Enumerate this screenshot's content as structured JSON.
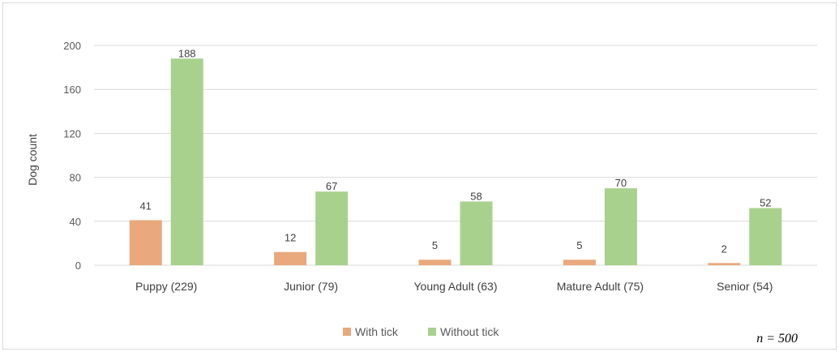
{
  "chart_data": {
    "type": "bar",
    "categories": [
      "Puppy (229)",
      "Junior (79)",
      "Young Adult (63)",
      "Mature Adult (75)",
      "Senior (54)"
    ],
    "series": [
      {
        "name": "With tick",
        "values": [
          41,
          12,
          5,
          5,
          2
        ],
        "color": "#e9a97c"
      },
      {
        "name": "Without tick",
        "values": [
          188,
          67,
          58,
          70,
          52
        ],
        "color": "#a9d18e"
      }
    ],
    "ylabel": "Dog count",
    "xlabel": "",
    "ylim": [
      0,
      200
    ],
    "yticks": [
      0,
      40,
      80,
      120,
      160,
      200
    ],
    "grid": true,
    "legend_position": "bottom",
    "annotation": "n = 500",
    "colors": {
      "grid": "#d9d9d9",
      "text": "#595959"
    }
  }
}
